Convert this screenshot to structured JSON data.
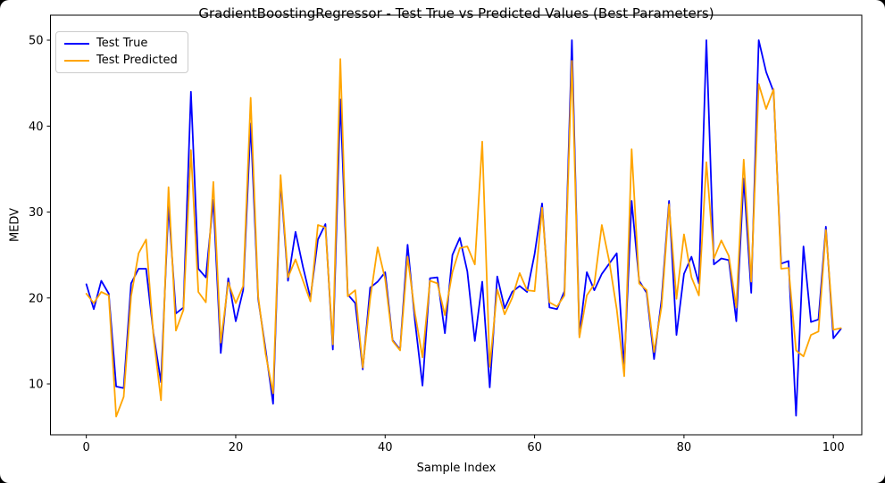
{
  "window": {
    "background": "#000000",
    "figure_background": "#ffffff"
  },
  "chart_data": {
    "type": "line",
    "title": "GradientBoostingRegressor - Test True vs Predicted Values (Best Parameters)",
    "xlabel": "Sample Index",
    "ylabel": "MEDV",
    "x_ticks": [
      0,
      20,
      40,
      60,
      80,
      100
    ],
    "y_ticks": [
      10,
      20,
      30,
      40,
      50
    ],
    "xlim": [
      -4.8,
      103.8
    ],
    "ylim": [
      4.08,
      52.91
    ],
    "grid": false,
    "legend_position": "upper left",
    "axis_color": "#000000",
    "x": [
      0,
      1,
      2,
      3,
      4,
      5,
      6,
      7,
      8,
      9,
      10,
      11,
      12,
      13,
      14,
      15,
      16,
      17,
      18,
      19,
      20,
      21,
      22,
      23,
      24,
      25,
      26,
      27,
      28,
      29,
      30,
      31,
      32,
      33,
      34,
      35,
      36,
      37,
      38,
      39,
      40,
      41,
      42,
      43,
      44,
      45,
      46,
      47,
      48,
      49,
      50,
      51,
      52,
      53,
      54,
      55,
      56,
      57,
      58,
      59,
      60,
      61,
      62,
      63,
      64,
      65,
      66,
      67,
      68,
      69,
      70,
      71,
      72,
      73,
      74,
      75,
      76,
      77,
      78,
      79,
      80,
      81,
      82,
      83,
      84,
      85,
      86,
      87,
      88,
      89,
      90,
      91,
      92,
      93,
      94,
      95,
      96,
      97,
      98,
      99,
      100,
      101
    ],
    "series": [
      {
        "name": "Test True",
        "color": "#0000ff",
        "values": [
          21.6,
          18.7,
          22.0,
          20.5,
          9.7,
          9.5,
          21.7,
          23.4,
          23.4,
          15.8,
          10.2,
          30.8,
          18.2,
          18.9,
          44.0,
          23.4,
          22.4,
          31.4,
          13.6,
          22.3,
          17.3,
          20.9,
          40.3,
          19.9,
          14.0,
          7.7,
          33.7,
          22.0,
          27.7,
          23.6,
          20.0,
          26.8,
          28.6,
          14.0,
          43.1,
          20.4,
          19.4,
          11.7,
          21.2,
          21.9,
          23.0,
          15.1,
          14.0,
          26.2,
          17.3,
          9.8,
          22.3,
          22.4,
          15.9,
          25.0,
          27.0,
          23.1,
          15.0,
          21.9,
          9.6,
          22.5,
          18.8,
          20.7,
          21.4,
          20.7,
          25.1,
          31.0,
          18.9,
          18.7,
          20.8,
          50.0,
          15.7,
          23.0,
          20.9,
          22.8,
          24.0,
          25.2,
          12.0,
          31.3,
          22.0,
          20.6,
          12.9,
          19.8,
          31.3,
          15.7,
          22.8,
          24.8,
          21.7,
          50.0,
          23.9,
          24.6,
          24.4,
          17.3,
          33.9,
          20.6,
          50.0,
          46.3,
          44.0,
          24.0,
          24.3,
          6.3,
          26.0,
          17.2,
          17.5,
          28.3,
          15.3,
          16.4
        ]
      },
      {
        "name": "Test Predicted",
        "color": "#ffa500",
        "values": [
          20.5,
          19.4,
          20.7,
          20.3,
          6.2,
          8.5,
          20.2,
          25.2,
          26.8,
          15.5,
          8.1,
          32.9,
          16.2,
          18.6,
          37.2,
          20.7,
          19.5,
          33.5,
          14.8,
          21.8,
          19.4,
          21.4,
          43.3,
          20.2,
          13.5,
          8.9,
          34.3,
          22.4,
          24.5,
          22.0,
          19.6,
          28.5,
          28.2,
          14.6,
          47.8,
          20.2,
          20.9,
          11.9,
          19.9,
          25.9,
          22.2,
          15.0,
          13.9,
          24.8,
          18.2,
          13.1,
          22.0,
          21.7,
          18.0,
          23.0,
          25.8,
          26.0,
          23.9,
          38.2,
          12.0,
          21.0,
          18.1,
          20.0,
          22.9,
          20.9,
          20.8,
          30.5,
          19.5,
          19.0,
          20.3,
          47.6,
          15.4,
          20.3,
          21.6,
          28.5,
          24.3,
          18.7,
          10.9,
          37.3,
          21.7,
          20.9,
          13.7,
          19.0,
          30.9,
          19.9,
          27.4,
          22.4,
          20.3,
          35.8,
          24.6,
          26.7,
          24.9,
          18.9,
          36.1,
          21.9,
          44.9,
          42.0,
          44.3,
          23.4,
          23.5,
          13.9,
          13.2,
          15.7,
          16.1,
          27.9,
          16.3,
          16.5
        ]
      }
    ]
  }
}
